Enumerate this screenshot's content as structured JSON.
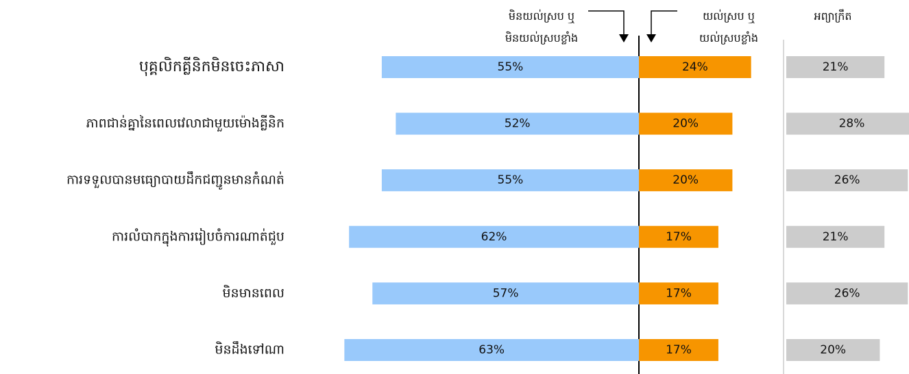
{
  "chart_data": {
    "type": "bar",
    "categories": [
      "បុគ្គលិកគ្លីនិកមិនចេះភាសា",
      "ភាពជាន់គ្នានៃពេលវេលាជាមួយម៉ោងគ្លីនិក",
      "ការទទួលបានមធ្យោបាយដឹកជញ្ជូនមានកំណត់",
      "ការលំបាកក្នុងការរៀបចំការណាត់ជួប",
      "មិនមានពេល",
      "មិនដឹងទៅណា"
    ],
    "series": [
      {
        "name": "មិនយល់ស្រប ឬ\nមិនយល់ស្របខ្លាំង",
        "color": "#99c9fb",
        "values": [
          55,
          52,
          55,
          62,
          57,
          63
        ],
        "value_labels": [
          "55%",
          "52%",
          "55%",
          "62%",
          "57%",
          "63%"
        ]
      },
      {
        "name": "យល់ស្រប ឬ\nយល់ស្របខ្លាំង",
        "color": "#f79500",
        "values": [
          24,
          20,
          20,
          17,
          17,
          17
        ],
        "value_labels": [
          "24%",
          "20%",
          "20%",
          "17%",
          "17%",
          "17%"
        ]
      },
      {
        "name": "អព្យាក្រឹត",
        "color": "#cccccc",
        "values": [
          21,
          28,
          26,
          21,
          26,
          20
        ],
        "value_labels": [
          "21%",
          "28%",
          "26%",
          "21%",
          "26%",
          "20%"
        ]
      }
    ]
  }
}
